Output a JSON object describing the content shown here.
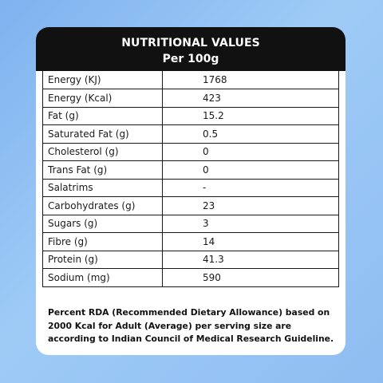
{
  "header": {
    "title": "NUTRITIONAL VALUES",
    "subtitle": "Per 100g"
  },
  "rows": [
    {
      "label": "Energy (KJ)",
      "value": "1768"
    },
    {
      "label": "Energy (Kcal)",
      "value": "423"
    },
    {
      "label": "Fat (g)",
      "value": "15.2"
    },
    {
      "label": "Saturated Fat (g)",
      "value": "0.5"
    },
    {
      "label": "Cholesterol (g)",
      "value": "0"
    },
    {
      "label": "Trans Fat (g)",
      "value": "0"
    },
    {
      "label": "Salatrims",
      "value": "-"
    },
    {
      "label": "Carbohydrates (g)",
      "value": "23"
    },
    {
      "label": "Sugars (g)",
      "value": "3"
    },
    {
      "label": "Fibre (g)",
      "value": "14"
    },
    {
      "label": "Protein (g)",
      "value": "41.3"
    },
    {
      "label": "Sodium (mg)",
      "value": "590"
    }
  ],
  "footnote": "Percent RDA (Recommended Dietary Allowance) based on 2000 Kcal for Adult (Average) per serving size are according to Indian Council of Medical Research Guideline.",
  "colors": {
    "header_bg": "#111111",
    "card_bg": "#ffffff",
    "page_bg": "#8fbdf2"
  }
}
